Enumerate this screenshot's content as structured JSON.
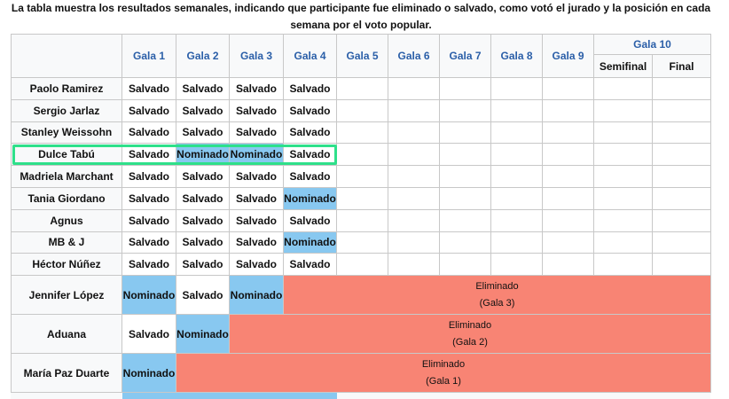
{
  "caption": {
    "line1": "La tabla muestra los resultados semanales, indicando que participante fue eliminado o salvado, como votó el jurado y la posición en cada",
    "line2": "semana por el voto popular."
  },
  "headers": {
    "galas": [
      "Gala 1",
      "Gala 2",
      "Gala 3",
      "Gala 4",
      "Gala 5",
      "Gala 6",
      "Gala 7",
      "Gala 8",
      "Gala 9"
    ],
    "gala10": "Gala 10",
    "semifinal": "Semifinal",
    "final": "Final"
  },
  "rows": [
    {
      "name": "Paolo Ramirez",
      "results": [
        "Salvado",
        "Salvado",
        "Salvado",
        "Salvado"
      ]
    },
    {
      "name": "Sergio Jarlaz",
      "results": [
        "Salvado",
        "Salvado",
        "Salvado",
        "Salvado"
      ]
    },
    {
      "name": "Stanley Weissohn",
      "results": [
        "Salvado",
        "Salvado",
        "Salvado",
        "Salvado"
      ]
    },
    {
      "name": "Dulce Tabú",
      "results": [
        "Salvado",
        "Nominado",
        "Nominado",
        "Salvado"
      ]
    },
    {
      "name": "Madriela Marchant",
      "results": [
        "Salvado",
        "Salvado",
        "Salvado",
        "Salvado"
      ]
    },
    {
      "name": "Tania Giordano",
      "results": [
        "Salvado",
        "Salvado",
        "Salvado",
        "Nominado"
      ]
    },
    {
      "name": "Agnus",
      "results": [
        "Salvado",
        "Salvado",
        "Salvado",
        "Salvado"
      ]
    },
    {
      "name": "MB & J",
      "results": [
        "Salvado",
        "Salvado",
        "Salvado",
        "Nominado"
      ]
    },
    {
      "name": "Héctor Núñez",
      "results": [
        "Salvado",
        "Salvado",
        "Salvado",
        "Salvado"
      ]
    }
  ],
  "eliminated": [
    {
      "name": "Jennifer López",
      "results": [
        "Nominado",
        "Salvado",
        "Nominado"
      ],
      "label": "Eliminado",
      "gala": "(Gala 3)"
    },
    {
      "name": "Aduana",
      "results": [
        "Salvado",
        "Nominado"
      ],
      "label": "Eliminado",
      "gala": "(Gala 2)"
    },
    {
      "name": "María Paz Duarte",
      "results": [
        "Nominado"
      ],
      "label": "Eliminado",
      "gala": "(Gala 1)"
    }
  ],
  "colors": {
    "nominado": "#88c8f0",
    "eliminado": "#f88474",
    "highlight": "#2ee08a",
    "header_link": "#2b5fa8"
  }
}
